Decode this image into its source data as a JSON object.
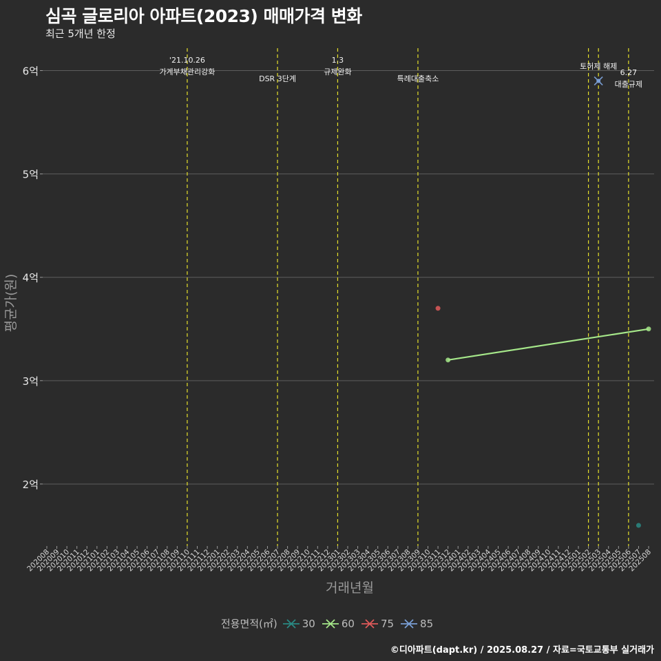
{
  "title": "심곡 글로리아 아파트(2023) 매매가격 변화",
  "subtitle": "최근 5개년 한정",
  "caption": "©디아파트(dapt.kr) / 2025.08.27 / 자료=국토교통부 실거래가",
  "chart_data": {
    "type": "line",
    "xlabel": "거래년월",
    "ylabel": "평균가(원)",
    "x_categories": [
      "202008",
      "202009",
      "202010",
      "202011",
      "202012",
      "202101",
      "202102",
      "202103",
      "202104",
      "202105",
      "202106",
      "202107",
      "202108",
      "202109",
      "202110",
      "202111",
      "202112",
      "202201",
      "202202",
      "202203",
      "202204",
      "202205",
      "202206",
      "202207",
      "202208",
      "202209",
      "202210",
      "202211",
      "202212",
      "202301",
      "202302",
      "202303",
      "202304",
      "202305",
      "202306",
      "202307",
      "202308",
      "202309",
      "202310",
      "202311",
      "202312",
      "202401",
      "202402",
      "202403",
      "202404",
      "202405",
      "202406",
      "202407",
      "202408",
      "202409",
      "202410",
      "202411",
      "202412",
      "202501",
      "202502",
      "202503",
      "202504",
      "202505",
      "202506",
      "202507",
      "202508"
    ],
    "ylim": [
      1.4,
      6.25
    ],
    "y_ticks": [
      {
        "value": 2,
        "label": "2억"
      },
      {
        "value": 3,
        "label": "3억"
      },
      {
        "value": 4,
        "label": "4억"
      },
      {
        "value": 5,
        "label": "5억"
      },
      {
        "value": 6,
        "label": "6억"
      }
    ],
    "grid": true,
    "legend_title": "전용면적(㎡)",
    "legend_position": "bottom",
    "series": [
      {
        "name": "30",
        "color": "#2a8a84",
        "points": [
          {
            "x": "202507",
            "y": 1.6
          }
        ]
      },
      {
        "name": "60",
        "color": "#a6e88a",
        "points": [
          {
            "x": "202312",
            "y": 3.2
          },
          {
            "x": "202508",
            "y": 3.5
          }
        ]
      },
      {
        "name": "75",
        "color": "#e05a5a",
        "points": [
          {
            "x": "202311",
            "y": 3.7
          }
        ]
      },
      {
        "name": "85",
        "color": "#7a9fd6",
        "points": [
          {
            "x": "202503",
            "y": 5.9
          }
        ]
      }
    ],
    "events": [
      {
        "x": "202110",
        "lines": [
          "'21.10.26",
          "가계부채관리강화"
        ]
      },
      {
        "x": "202207",
        "lines": [
          "DSR 3단계"
        ]
      },
      {
        "x": "202301",
        "lines": [
          "1.3",
          "규제완화"
        ]
      },
      {
        "x": "202309",
        "lines": [
          "특례대출축소"
        ]
      },
      {
        "x": "202502",
        "lines": []
      },
      {
        "x": "202503",
        "lines": [
          "토허제 해제"
        ]
      },
      {
        "x": "202506",
        "lines": [
          "6.27",
          "대출규제"
        ]
      }
    ]
  }
}
